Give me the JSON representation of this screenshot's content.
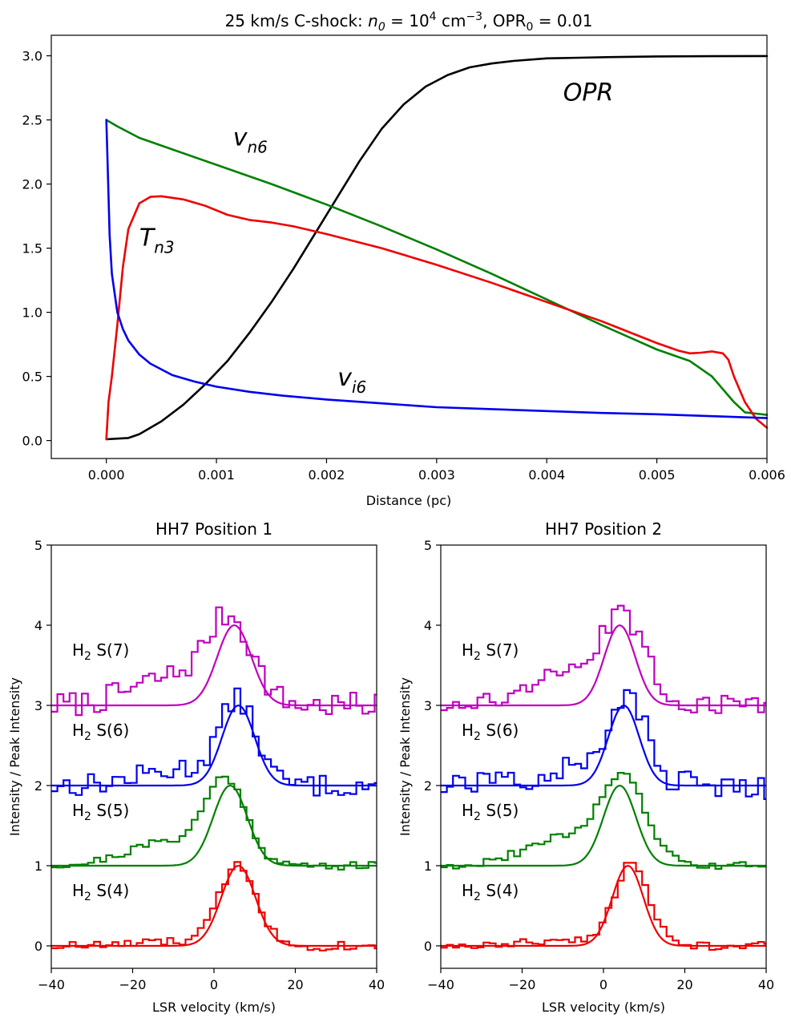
{
  "chart_data": [
    {
      "type": "line",
      "title": "25 km/s C-shock: n0 = 10^4 cm^-3, OPR0 = 0.01",
      "title_parts": {
        "prefix": "25 km/s C-shock: ",
        "n_sym": "n",
        "n_sub": "0",
        "eq1": " = 10",
        "n_exp": "4",
        "unit": " cm",
        "unit_exp": "−3",
        "opr_text": ", OPR",
        "opr_sub": "0",
        "opr_val": " = 0.01"
      },
      "xlabel": "Distance (pc)",
      "ylabel": "",
      "xlim": [
        -0.0005,
        0.006
      ],
      "ylim": [
        -0.14,
        3.16
      ],
      "xticks": [
        "0.000",
        "0.001",
        "0.002",
        "0.003",
        "0.004",
        "0.005",
        "0.006"
      ],
      "yticks": [
        "0.0",
        "0.5",
        "1.0",
        "1.5",
        "2.0",
        "2.5",
        "3.0"
      ],
      "series": [
        {
          "label_main": "OPR",
          "label_sub": "",
          "color": "#000000",
          "x": [
            0.0,
            0.0001,
            0.0002,
            0.0003,
            0.0005,
            0.0007,
            0.0009,
            0.0011,
            0.0013,
            0.0015,
            0.0017,
            0.0019,
            0.0021,
            0.0023,
            0.0025,
            0.0027,
            0.0029,
            0.0031,
            0.0033,
            0.0035,
            0.0037,
            0.004,
            0.0043,
            0.0046,
            0.005,
            0.0055,
            0.006
          ],
          "y": [
            0.01,
            0.015,
            0.02,
            0.05,
            0.15,
            0.28,
            0.44,
            0.62,
            0.84,
            1.08,
            1.34,
            1.62,
            1.9,
            2.18,
            2.43,
            2.62,
            2.76,
            2.85,
            2.91,
            2.94,
            2.96,
            2.98,
            2.985,
            2.99,
            2.995,
            2.997,
            2.998
          ]
        },
        {
          "label_main": "v",
          "label_sub": "n6",
          "color": "#008000",
          "x": [
            0.0,
            0.0001,
            0.0003,
            0.0005,
            0.001,
            0.0015,
            0.002,
            0.0025,
            0.003,
            0.0035,
            0.004,
            0.0045,
            0.005,
            0.0053,
            0.0055,
            0.0057,
            0.0058,
            0.0059,
            0.006
          ],
          "y": [
            2.5,
            2.45,
            2.36,
            2.3,
            2.15,
            2.0,
            1.84,
            1.67,
            1.49,
            1.3,
            1.1,
            0.9,
            0.71,
            0.62,
            0.5,
            0.3,
            0.22,
            0.21,
            0.2
          ]
        },
        {
          "label_main": "T",
          "label_sub": "n3",
          "color": "#ee0000",
          "x": [
            0.0,
            2e-05,
            5e-05,
            0.0001,
            0.00015,
            0.0002,
            0.0003,
            0.0004,
            0.0005,
            0.0007,
            0.0009,
            0.0011,
            0.0013,
            0.0015,
            0.0017,
            0.002,
            0.0025,
            0.003,
            0.0035,
            0.004,
            0.0045,
            0.005,
            0.0052,
            0.0053,
            0.0054,
            0.0055,
            0.0056,
            0.00565,
            0.0057,
            0.0058,
            0.0059,
            0.006
          ],
          "y": [
            0.01,
            0.3,
            0.5,
            0.9,
            1.35,
            1.65,
            1.85,
            1.9,
            1.905,
            1.88,
            1.83,
            1.76,
            1.72,
            1.7,
            1.67,
            1.61,
            1.5,
            1.37,
            1.23,
            1.08,
            0.93,
            0.76,
            0.7,
            0.68,
            0.685,
            0.695,
            0.68,
            0.63,
            0.5,
            0.3,
            0.17,
            0.1
          ]
        },
        {
          "label_main": "v",
          "label_sub": "i6",
          "color": "#0000ee",
          "x": [
            0.0,
            1e-05,
            3e-05,
            5e-05,
            0.0001,
            0.00015,
            0.0002,
            0.0003,
            0.0004,
            0.0006,
            0.0008,
            0.001,
            0.0013,
            0.0016,
            0.002,
            0.0025,
            0.003,
            0.0035,
            0.004,
            0.0045,
            0.005,
            0.0055,
            0.006
          ],
          "y": [
            2.5,
            2.2,
            1.6,
            1.3,
            1.0,
            0.87,
            0.78,
            0.67,
            0.6,
            0.51,
            0.46,
            0.42,
            0.38,
            0.35,
            0.32,
            0.29,
            0.26,
            0.245,
            0.23,
            0.215,
            0.205,
            0.19,
            0.175
          ]
        }
      ],
      "annotations": [
        {
          "main": "OPR",
          "sub": "",
          "color": "#000000",
          "x": 0.00415,
          "y": 2.65
        },
        {
          "main": "v",
          "sub": "n6",
          "color": "#008000",
          "x": 0.00115,
          "y": 2.3
        },
        {
          "main": "T",
          "sub": "n3",
          "color": "#ee0000",
          "x": 0.0003,
          "y": 1.52
        },
        {
          "main": "v",
          "sub": "i6",
          "color": "#0000ee",
          "x": 0.0021,
          "y": 0.43
        }
      ]
    },
    {
      "type": "line",
      "title": "HH7 Position 1",
      "xlabel": "LSR velocity (km/s)",
      "ylabel": "Intensity / Peak Intensity",
      "xlim": [
        -40,
        40
      ],
      "ylim": [
        -0.28,
        5
      ],
      "xticks": [
        "−40",
        "−20",
        "0",
        "20",
        "40"
      ],
      "yticks": [
        "0",
        "1",
        "2",
        "3",
        "4",
        "5"
      ],
      "series": [
        {
          "name": "H2 S(7)",
          "offset": 3,
          "color": "#bf00bf",
          "fit_center": 5,
          "fit_sigma": 4.2,
          "obs_center": 4,
          "obs_sigma": 5.5,
          "obs_wing": 0.35,
          "noise": 0.16,
          "seed": 7
        },
        {
          "name": "H2 S(6)",
          "offset": 2,
          "color": "#0000ee",
          "fit_center": 6,
          "fit_sigma": 4.0,
          "obs_center": 6,
          "obs_sigma": 4.5,
          "obs_wing": 0.2,
          "noise": 0.14,
          "seed": 13
        },
        {
          "name": "H2 S(5)",
          "offset": 1,
          "color": "#008000",
          "fit_center": 4,
          "fit_sigma": 4.2,
          "obs_center": 3,
          "obs_sigma": 5.0,
          "obs_wing": 0.3,
          "noise": 0.05,
          "seed": 21
        },
        {
          "name": "H2 S(4)",
          "offset": 0,
          "color": "#ee0000",
          "fit_center": 6,
          "fit_sigma": 4.2,
          "obs_center": 6,
          "obs_sigma": 4.6,
          "obs_wing": 0.05,
          "noise": 0.06,
          "seed": 33
        }
      ]
    },
    {
      "type": "line",
      "title": "HH7 Position 2",
      "xlabel": "LSR velocity (km/s)",
      "ylabel": "Intensity / Peak Intensity",
      "xlim": [
        -40,
        40
      ],
      "ylim": [
        -0.28,
        5
      ],
      "xticks": [
        "−40",
        "−20",
        "0",
        "20",
        "40"
      ],
      "yticks": [
        "0",
        "1",
        "2",
        "3",
        "4",
        "5"
      ],
      "series": [
        {
          "name": "H2 S(7)",
          "offset": 3,
          "color": "#bf00bf",
          "fit_center": 4,
          "fit_sigma": 3.8,
          "obs_center": 5,
          "obs_sigma": 5.5,
          "obs_wing": 0.35,
          "noise": 0.13,
          "seed": 45
        },
        {
          "name": "H2 S(6)",
          "offset": 2,
          "color": "#0000ee",
          "fit_center": 5,
          "fit_sigma": 3.8,
          "obs_center": 6,
          "obs_sigma": 4.8,
          "obs_wing": 0.2,
          "noise": 0.17,
          "seed": 57
        },
        {
          "name": "H2 S(5)",
          "offset": 1,
          "color": "#008000",
          "fit_center": 4,
          "fit_sigma": 4.0,
          "obs_center": 5,
          "obs_sigma": 5.5,
          "obs_wing": 0.35,
          "noise": 0.05,
          "seed": 69
        },
        {
          "name": "H2 S(4)",
          "offset": 0,
          "color": "#ee0000",
          "fit_center": 6,
          "fit_sigma": 3.8,
          "obs_center": 7,
          "obs_sigma": 4.2,
          "obs_wing": 0.08,
          "noise": 0.05,
          "seed": 81
        }
      ]
    }
  ]
}
